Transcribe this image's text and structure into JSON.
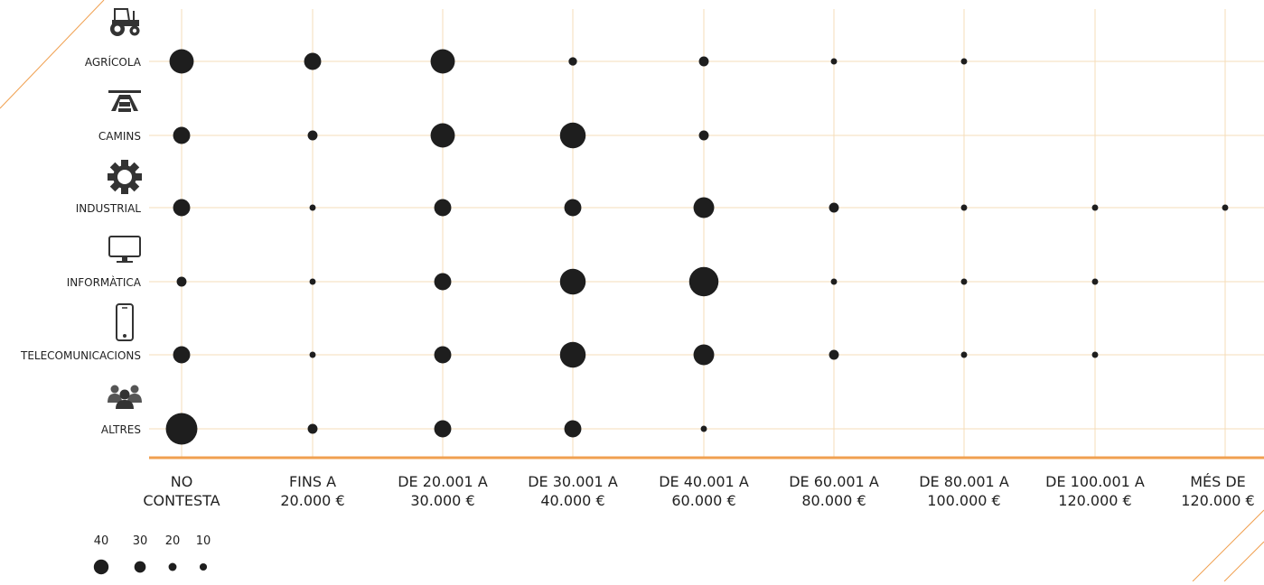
{
  "colors": {
    "grid": "#f6dcb8",
    "axis": "#f0a050",
    "accent_line": "#f0a050",
    "bubble": "#1e1e1e",
    "icon": "#333333",
    "text": "#222222"
  },
  "chart_data": {
    "type": "scatter",
    "subtype": "bubble-grid",
    "title": "",
    "categories_x": [
      [
        "NO",
        "CONTESTA"
      ],
      [
        "FINS A",
        "20.000 €"
      ],
      [
        "DE 20.001 A",
        "30.000 €"
      ],
      [
        "DE 30.001 A",
        "40.000 €"
      ],
      [
        "DE 40.001 A",
        "60.000 €"
      ],
      [
        "DE 60.001 A",
        "80.000 €"
      ],
      [
        "DE 80.001 A",
        "100.000 €"
      ],
      [
        "DE 100.001 A",
        "120.000 €"
      ],
      [
        "MÉS DE",
        "120.000 €"
      ]
    ],
    "categories_y": [
      {
        "label": "AGRÍCOLA",
        "icon": "tractor-icon"
      },
      {
        "label": "CAMINS",
        "icon": "road-icon"
      },
      {
        "label": "INDUSTRIAL",
        "icon": "gear-icon"
      },
      {
        "label": "INFORMÀTICA",
        "icon": "monitor-icon"
      },
      {
        "label": "TELECOMUNICACIONS",
        "icon": "smartphone-icon"
      },
      {
        "label": "ALTRES",
        "icon": "people-icon"
      }
    ],
    "values": [
      [
        30,
        20,
        30,
        8,
        10,
        5,
        5,
        null,
        null
      ],
      [
        20,
        10,
        30,
        32,
        10,
        null,
        null,
        null,
        null
      ],
      [
        20,
        5,
        20,
        20,
        25,
        10,
        5,
        5,
        5
      ],
      [
        10,
        5,
        20,
        32,
        37,
        5,
        5,
        5,
        null
      ],
      [
        20,
        5,
        20,
        32,
        25,
        10,
        5,
        5,
        null
      ],
      [
        40,
        10,
        20,
        20,
        5,
        null,
        null,
        null,
        null
      ]
    ],
    "size_legend": [
      {
        "label": "40",
        "value": 40
      },
      {
        "label": "30",
        "value": 30
      },
      {
        "label": "20",
        "value": 20
      },
      {
        "label": "10",
        "value": 10
      }
    ],
    "grid": true
  }
}
